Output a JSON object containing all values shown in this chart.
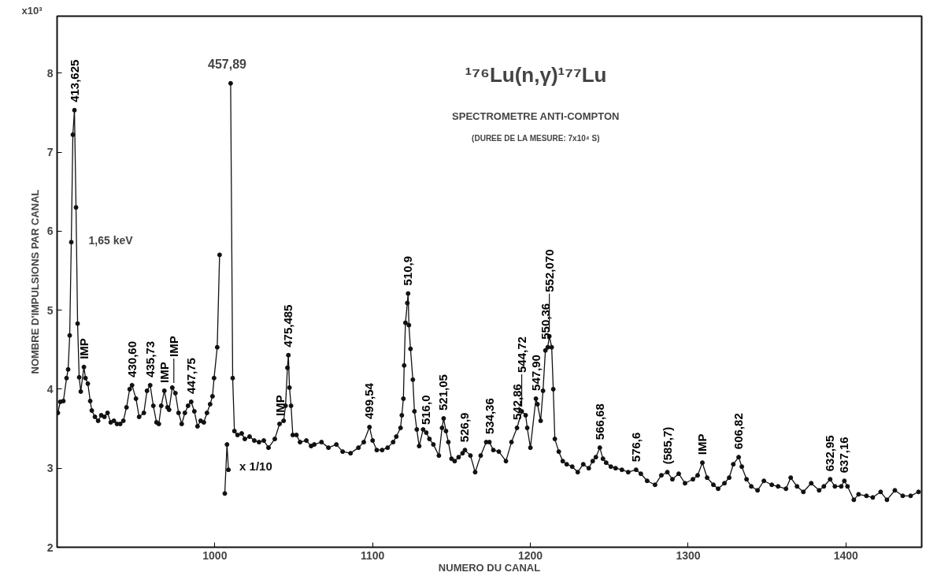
{
  "chart_data": {
    "type": "line",
    "title": "¹⁷⁶Lu(n,γ)¹⁷⁷Lu",
    "subtitle": "SPECTROMETRE ANTI-COMPTON",
    "xlabel": "NUMERO DU CANAL",
    "ylabel": "NOMBRE D'IMPULSIONS PAR CANAL",
    "xlim": [
      900,
      1448
    ],
    "ylim": [
      2,
      8.72
    ],
    "xticks": [
      1000,
      1100,
      1200,
      1300,
      1400
    ],
    "yticks": [
      2,
      3,
      4,
      5,
      6,
      7,
      8
    ],
    "grid": false,
    "marker": "circle",
    "line_style": "solid",
    "series": [
      {
        "color": "#111111",
        "x": [
          900.5,
          902,
          904,
          906,
          907,
          908,
          909,
          910,
          911,
          912,
          913,
          914,
          915,
          917,
          918,
          919.5,
          921,
          922,
          924,
          926,
          928,
          930,
          932,
          934,
          936,
          938,
          940,
          942,
          944,
          946,
          947.5,
          950,
          952,
          955,
          957,
          959,
          961,
          963,
          964.5,
          966,
          968,
          970,
          971,
          973,
          975,
          977,
          979,
          981,
          983,
          985,
          987,
          989,
          991,
          993,
          995,
          997,
          998.5,
          999.5,
          1001.5,
          1003,
          1005,
          1010,
          1011.3,
          1012.4,
          1014.4,
          1017,
          1019,
          1022,
          1025,
          1028,
          1031,
          1034,
          1038,
          1041,
          1043.6,
          1044.8,
          1046,
          1046.6,
          1047.3,
          1048.3,
          1049.4,
          1051.7,
          1054,
          1058,
          1061,
          1063,
          1067.6,
          1072,
          1077,
          1081,
          1086,
          1091,
          1094.4,
          1098,
          1100,
          1102.6,
          1106,
          1109.5,
          1113,
          1115,
          1117.7,
          1118.5,
          1119.5,
          1120,
          1120.8,
          1122,
          1122.5,
          1123,
          1124,
          1125.5,
          1126.5,
          1128,
          1129.5,
          1132,
          1134,
          1136,
          1138.5,
          1142,
          1144,
          1145,
          1146.5,
          1148,
          1150,
          1152,
          1154.5,
          1157,
          1158.5,
          1162,
          1165,
          1168.5,
          1172,
          1174,
          1176.5,
          1180,
          1184.5,
          1188,
          1191.5,
          1194.5,
          1197,
          1198,
          1200,
          1203.5,
          1204.5,
          1206.5,
          1208,
          1209.5,
          1211,
          1212,
          1213.5,
          1214.5,
          1215.5,
          1218,
          1220.5,
          1223,
          1226.5,
          1230,
          1233.5,
          1237,
          1239.5,
          1241.5,
          1244,
          1246,
          1248,
          1251,
          1254,
          1258,
          1262,
          1267,
          1270,
          1274,
          1279,
          1283,
          1286.8,
          1290,
          1294,
          1298,
          1303,
          1306,
          1309,
          1312,
          1316,
          1319,
          1323,
          1326,
          1328.6,
          1332,
          1334,
          1337,
          1340,
          1344,
          1348,
          1353,
          1357,
          1362,
          1365,
          1369,
          1373,
          1378,
          1383,
          1386,
          1390,
          1393,
          1397,
          1399,
          1401,
          1405,
          1408,
          1413,
          1417,
          1422,
          1426,
          1431,
          1436,
          1441,
          1446
        ],
        "values": [
          3.7,
          3.84,
          3.85,
          4.14,
          4.25,
          4.68,
          5.86,
          7.22,
          7.53,
          6.3,
          4.83,
          4.15,
          3.97,
          4.28,
          4.14,
          4.07,
          3.85,
          3.73,
          3.65,
          3.6,
          3.67,
          3.65,
          3.7,
          3.58,
          3.6,
          3.56,
          3.56,
          3.6,
          3.77,
          4.0,
          4.05,
          3.88,
          3.65,
          3.7,
          3.98,
          4.05,
          3.79,
          3.58,
          3.56,
          3.79,
          3.98,
          3.77,
          3.74,
          4.02,
          3.95,
          3.7,
          3.56,
          3.7,
          3.79,
          3.84,
          3.72,
          3.53,
          3.6,
          3.58,
          3.7,
          3.81,
          3.91,
          4.14,
          4.53,
          5.7,
          null,
          7.87,
          4.14,
          3.47,
          3.42,
          3.44,
          3.37,
          3.4,
          3.35,
          3.33,
          3.35,
          3.26,
          3.37,
          3.56,
          3.6,
          3.79,
          4.27,
          4.43,
          4.02,
          3.79,
          3.42,
          3.42,
          3.33,
          3.35,
          3.28,
          3.3,
          3.33,
          3.26,
          3.3,
          3.21,
          3.19,
          3.26,
          3.33,
          3.52,
          3.35,
          3.23,
          3.23,
          3.26,
          3.33,
          3.4,
          3.51,
          3.67,
          3.88,
          4.3,
          4.84,
          5.09,
          5.21,
          4.81,
          4.51,
          4.12,
          3.72,
          3.49,
          3.28,
          3.49,
          3.45,
          3.37,
          3.3,
          3.16,
          3.51,
          3.63,
          3.47,
          3.33,
          3.12,
          3.09,
          3.14,
          3.19,
          3.23,
          3.16,
          2.95,
          3.16,
          3.33,
          3.33,
          3.23,
          3.21,
          3.09,
          3.33,
          3.51,
          3.72,
          3.67,
          3.51,
          3.26,
          3.88,
          3.81,
          3.6,
          3.98,
          4.49,
          4.53,
          4.67,
          4.53,
          4.0,
          3.37,
          3.21,
          3.09,
          3.05,
          3.02,
          2.95,
          3.05,
          3.0,
          3.09,
          3.14,
          3.26,
          3.12,
          3.07,
          3.02,
          3.0,
          2.98,
          2.95,
          2.98,
          2.93,
          2.84,
          2.79,
          2.91,
          2.95,
          2.86,
          2.93,
          2.81,
          2.86,
          2.91,
          3.07,
          2.88,
          2.79,
          2.74,
          2.81,
          2.88,
          3.05,
          3.14,
          3.02,
          2.86,
          2.77,
          2.72,
          2.84,
          2.79,
          2.77,
          2.74,
          2.88,
          2.77,
          2.7,
          2.81,
          2.72,
          2.77,
          2.86,
          2.77,
          2.77,
          2.84,
          2.77,
          2.6,
          2.67,
          2.65,
          2.63,
          2.7,
          2.6,
          2.72,
          2.65,
          2.65,
          2.7
        ]
      },
      {
        "name": "x 1/10",
        "color": "#111111",
        "x": [
          1006.3,
          1007.7,
          1008.6
        ],
        "values": [
          2.68,
          3.3,
          2.98
        ]
      }
    ],
    "annotations": [
      "x10³",
      "(DUREE DE LA MESURE: 7x10⁴ S)",
      "1,65 keV",
      {
        "text": "413,625",
        "x": 911,
        "y": 7.53
      },
      {
        "text": "IMP",
        "x": 917,
        "y": 4.28
      },
      {
        "text": "430,60",
        "x": 947.5,
        "y": 4.05
      },
      {
        "text": "435,73",
        "x": 959,
        "y": 4.05
      },
      {
        "text": "IMP",
        "x": 968,
        "y": 3.98
      },
      {
        "text": "IMP",
        "x": 974,
        "y": 4.02
      },
      {
        "text": "447,75",
        "x": 985,
        "y": 3.84
      },
      "457,89",
      {
        "text": "IMP",
        "x": 1041,
        "y": 3.56
      },
      {
        "text": "475,485",
        "x": 1046.6,
        "y": 4.43
      },
      {
        "text": "499,54",
        "x": 1098,
        "y": 3.52
      },
      {
        "text": "510,9",
        "x": 1122.5,
        "y": 5.21
      },
      {
        "text": "516,0",
        "x": 1134,
        "y": 3.45
      },
      {
        "text": "521,05",
        "x": 1145,
        "y": 3.63
      },
      {
        "text": "526,9",
        "x": 1158.5,
        "y": 3.23
      },
      {
        "text": "534,36",
        "x": 1174,
        "y": 3.33
      },
      {
        "text": "542,86",
        "x": 1191.5,
        "y": 3.51
      },
      {
        "text": "544,72",
        "x": 1194.5,
        "y": 3.72
      },
      {
        "text": "547,90",
        "x": 1203.5,
        "y": 3.88
      },
      {
        "text": "550,36",
        "x": 1209.5,
        "y": 4.53
      },
      {
        "text": "552,070",
        "x": 1212,
        "y": 4.67
      },
      {
        "text": "566,68",
        "x": 1244,
        "y": 3.26
      },
      {
        "text": "576,6",
        "x": 1267,
        "y": 2.98
      },
      {
        "text": "(585,7)",
        "x": 1286.8,
        "y": 2.95
      },
      {
        "text": "IMP",
        "x": 1309,
        "y": 3.07
      },
      {
        "text": "606,82",
        "x": 1332,
        "y": 3.14
      },
      {
        "text": "632,95",
        "x": 1390,
        "y": 2.86
      },
      {
        "text": "637,16",
        "x": 1399,
        "y": 2.84
      }
    ]
  }
}
